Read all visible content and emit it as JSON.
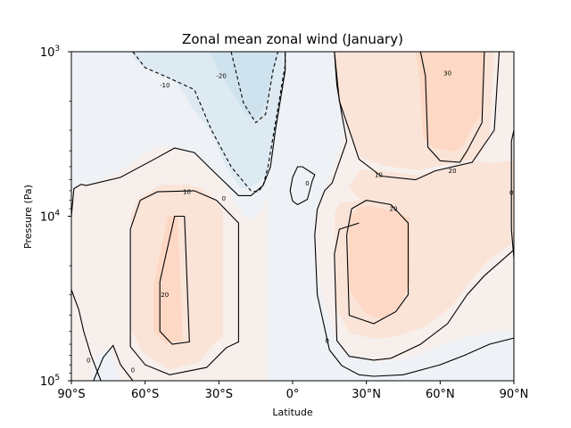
{
  "chart_data": {
    "type": "contour",
    "title": "Zonal mean zonal wind (January)",
    "xlabel": "Latitude",
    "ylabel": "Pressure (Pa)",
    "xlim": [
      -90,
      90
    ],
    "ylim": [
      100000,
      1000
    ],
    "yscale": "log",
    "x_ticks": [
      {
        "value": -90,
        "label": "90°S"
      },
      {
        "value": -60,
        "label": "60°S"
      },
      {
        "value": -30,
        "label": "30°S"
      },
      {
        "value": 0,
        "label": "0°"
      },
      {
        "value": 30,
        "label": "30°N"
      },
      {
        "value": 60,
        "label": "60°N"
      },
      {
        "value": 90,
        "label": "90°N"
      }
    ],
    "y_ticks": [
      {
        "value": 1000,
        "base": "10",
        "exp": "3"
      },
      {
        "value": 10000,
        "base": "10",
        "exp": "4"
      },
      {
        "value": 100000,
        "base": "10",
        "exp": "5"
      }
    ],
    "levels": [
      -20,
      -10,
      0,
      10,
      20,
      30
    ],
    "colors": {
      "fill_minus20": "#cfe3ee",
      "fill_minus10": "#deeaf2",
      "fill_background": "#eef2f6",
      "fill_0": "#f7efec",
      "fill_10": "#fae4d8",
      "fill_20": "#fdd8c4",
      "line": "#000000"
    },
    "contours": [
      {
        "level": -20,
        "style": "dashed",
        "points": [
          [
            -25,
            1000
          ],
          [
            -20,
            2050
          ],
          [
            -15,
            2700
          ],
          [
            -11,
            2400
          ],
          [
            -8,
            1300
          ],
          [
            -6,
            1000
          ]
        ]
      },
      {
        "level": -10,
        "style": "dashed",
        "points": [
          [
            -65,
            1000
          ],
          [
            -60,
            1250
          ],
          [
            -50,
            1450
          ],
          [
            -40,
            1700
          ],
          [
            -33,
            3000
          ],
          [
            -25,
            5000
          ],
          [
            -17,
            7000
          ],
          [
            -14,
            7100
          ],
          [
            -12,
            6500
          ],
          [
            -10,
            5000
          ],
          [
            -6,
            2200
          ],
          [
            -3,
            1200
          ],
          [
            -3,
            1000
          ]
        ]
      },
      {
        "level": 0,
        "style": "solid",
        "points": [
          [
            -90,
            10000
          ],
          [
            -89,
            6800
          ],
          [
            -86,
            6400
          ],
          [
            -84,
            6500
          ],
          [
            -70,
            5800
          ],
          [
            -55,
            4400
          ],
          [
            -48,
            3850
          ],
          [
            -40,
            4100
          ],
          [
            -33,
            5200
          ],
          [
            -22,
            7500
          ],
          [
            -17,
            7500
          ],
          [
            -12,
            6500
          ],
          [
            -9,
            5000
          ],
          [
            -7,
            3000
          ],
          [
            -3,
            1300
          ],
          [
            -3,
            1000
          ]
        ]
      },
      {
        "level": 0,
        "style": "solid",
        "points": [
          [
            17,
            1000
          ],
          [
            18,
            1600
          ],
          [
            20,
            2400
          ],
          [
            22,
            3500
          ],
          [
            16,
            6300
          ],
          [
            13,
            7000
          ],
          [
            10,
            9100
          ],
          [
            9,
            13000
          ],
          [
            10,
            30000
          ],
          [
            15,
            65000
          ],
          [
            20,
            81000
          ],
          [
            27,
            92000
          ],
          [
            33,
            94000
          ],
          [
            45,
            92000
          ],
          [
            60,
            80000
          ],
          [
            70,
            70000
          ],
          [
            80,
            60000
          ],
          [
            90,
            55000
          ]
        ]
      },
      {
        "level": 0,
        "style": "solid",
        "points": [
          [
            -90,
            28000
          ],
          [
            -87,
            37000
          ],
          [
            -85,
            50000
          ],
          [
            -82,
            70000
          ],
          [
            -78,
            100000
          ]
        ]
      },
      {
        "level": 0,
        "style": "solid",
        "points": [
          [
            -65,
            100000
          ],
          [
            -70,
            80000
          ],
          [
            -73,
            61000
          ],
          [
            -77,
            72000
          ],
          [
            -81,
            100000
          ]
        ]
      },
      {
        "level": 0,
        "style": "solid",
        "points": [
          [
            0,
            5800
          ],
          [
            2,
            5000
          ],
          [
            4,
            5000
          ],
          [
            9,
            5600
          ],
          [
            8,
            6100
          ],
          [
            6,
            7900
          ],
          [
            2,
            8500
          ],
          [
            0,
            8100
          ],
          [
            -1,
            7000
          ],
          [
            0,
            5800
          ]
        ]
      },
      {
        "level": 0,
        "style": "solid",
        "points": [
          [
            90,
            3000
          ],
          [
            89,
            3500
          ],
          [
            89,
            12000
          ],
          [
            90,
            18000
          ]
        ]
      },
      {
        "level": 10,
        "style": "solid",
        "points": [
          [
            -62,
            8000
          ],
          [
            -66,
            12000
          ],
          [
            -66,
            40000
          ],
          [
            -66,
            62000
          ],
          [
            -60,
            80000
          ],
          [
            -50,
            92000
          ],
          [
            -35,
            83000
          ],
          [
            -27,
            63000
          ],
          [
            -22,
            58000
          ],
          [
            -22,
            11000
          ],
          [
            -31,
            8000
          ],
          [
            -40,
            7000
          ],
          [
            -55,
            7100
          ],
          [
            -62,
            8000
          ]
        ]
      },
      {
        "level": 10,
        "style": "solid",
        "points": [
          [
            17,
            1000
          ],
          [
            19,
            2000
          ],
          [
            24,
            3300
          ],
          [
            27,
            4500
          ],
          [
            36,
            5700
          ],
          [
            50,
            6000
          ],
          [
            58,
            5300
          ],
          [
            73,
            4700
          ],
          [
            82,
            3000
          ],
          [
            84,
            1000
          ]
        ]
      },
      {
        "level": 10,
        "style": "solid",
        "points": [
          [
            27,
            11000
          ],
          [
            19,
            12000
          ],
          [
            17,
            17000
          ],
          [
            18,
            57000
          ],
          [
            23,
            71000
          ],
          [
            33,
            75000
          ],
          [
            40,
            73000
          ],
          [
            52,
            60000
          ],
          [
            63,
            45000
          ],
          [
            71,
            30000
          ],
          [
            78,
            23000
          ],
          [
            90,
            16000
          ]
        ]
      },
      {
        "level": 20,
        "style": "solid",
        "points": [
          [
            -44,
            10000
          ],
          [
            -48,
            10000
          ],
          [
            -54,
            25000
          ],
          [
            -54,
            50000
          ],
          [
            -49,
            60000
          ],
          [
            -42,
            58000
          ],
          [
            -44,
            10000
          ]
        ]
      },
      {
        "level": 20,
        "style": "solid",
        "points": [
          [
            24,
            9000
          ],
          [
            22,
            13000
          ],
          [
            23,
            40000
          ],
          [
            33,
            45000
          ],
          [
            42,
            38000
          ],
          [
            47,
            30000
          ],
          [
            47,
            11000
          ],
          [
            40,
            8500
          ],
          [
            30,
            8000
          ],
          [
            24,
            9000
          ]
        ]
      },
      {
        "level": 20,
        "style": "solid",
        "points": [
          [
            52,
            1000
          ],
          [
            54,
            1400
          ],
          [
            55,
            3800
          ],
          [
            60,
            4600
          ],
          [
            68,
            4700
          ],
          [
            71,
            4000
          ],
          [
            77,
            2700
          ],
          [
            78,
            1000
          ]
        ]
      }
    ],
    "contour_labels": [
      {
        "text": "-10",
        "lat": -52,
        "p": 1600
      },
      {
        "text": "-20",
        "lat": -29,
        "p": 1400
      },
      {
        "text": "10",
        "lat": -43,
        "p": 7100
      },
      {
        "text": "0",
        "lat": -28,
        "p": 7800
      },
      {
        "text": "20",
        "lat": -52,
        "p": 30000
      },
      {
        "text": "0",
        "lat": -83,
        "p": 75000
      },
      {
        "text": "0",
        "lat": -65,
        "p": 86000
      },
      {
        "text": "0",
        "lat": 6,
        "p": 6300
      },
      {
        "text": "10",
        "lat": 35,
        "p": 5600
      },
      {
        "text": "20",
        "lat": 41,
        "p": 9000
      },
      {
        "text": "20",
        "lat": 65,
        "p": 5300
      },
      {
        "text": "30",
        "lat": 63,
        "p": 1350
      },
      {
        "text": "0",
        "lat": 14,
        "p": 57000
      },
      {
        "text": "0",
        "lat": 89,
        "p": 7200
      }
    ]
  }
}
